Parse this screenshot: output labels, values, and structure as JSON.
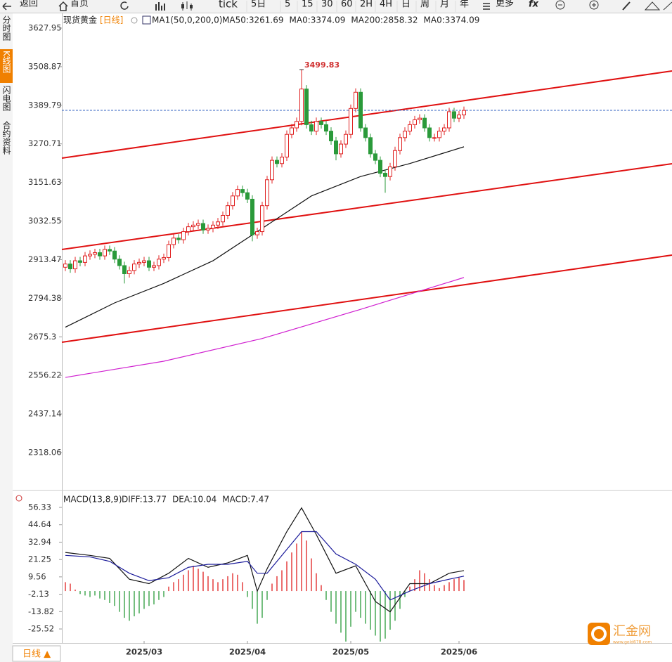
{
  "toolbar": {
    "back": "返回",
    "home": "首页",
    "tick": "tick",
    "periods": [
      "5日",
      "5",
      "15",
      "30",
      "60",
      "2H",
      "4H",
      "日",
      "周",
      "月",
      "年"
    ],
    "more": "更多",
    "fx": "fx"
  },
  "sidebar": [
    "分时图",
    "K线图",
    "闪电图",
    "合约资料"
  ],
  "bottom_tab": "日线 ▲",
  "watermark": {
    "name": "汇金网",
    "url": "www.gold678.com"
  },
  "chart_data": {
    "type": "candlestick",
    "title": "现货黄金",
    "period": "[日线]",
    "indicator": "MA1(50,0,200,0)",
    "header_labels": [
      {
        "text": "MA50:3261.69",
        "color": "#222"
      },
      {
        "text": "MA0:3374.09",
        "color": "#1a1a9a"
      },
      {
        "text": "MA200:2858.32",
        "color": "#d020d0"
      },
      {
        "text": "MA0:3374.09",
        "color": "#f08000"
      }
    ],
    "ylim": [
      2318.06,
      3627.95
    ],
    "yticks": [
      3627.95,
      3508.87,
      3389.79,
      3270.71,
      3151.63,
      3032.55,
      2913.47,
      2794.38,
      2675.3,
      2556.22,
      2437.14,
      2318.06
    ],
    "up_color": "#e02020",
    "down_color": "#2a9a3a",
    "last_price": 3374.09,
    "categories": [
      null,
      null,
      null,
      null,
      null,
      null,
      null,
      null,
      null,
      null,
      null,
      null,
      null,
      null,
      null,
      null,
      "2025/03",
      null,
      null,
      null,
      null,
      null,
      null,
      null,
      null,
      null,
      null,
      null,
      null,
      null,
      null,
      null,
      null,
      null,
      null,
      null,
      null,
      "2025/04",
      null,
      null,
      null,
      null,
      null,
      null,
      null,
      null,
      null,
      null,
      null,
      null,
      null,
      null,
      null,
      null,
      null,
      null,
      null,
      null,
      "2025/05",
      null,
      null,
      null,
      null,
      null,
      null,
      null,
      null,
      null,
      null,
      null,
      null,
      null,
      null,
      null,
      null,
      null,
      null,
      null,
      null,
      null,
      "2025/06",
      null
    ],
    "candles": [
      [
        2890,
        2912,
        2878,
        2900
      ],
      [
        2900,
        2912,
        2873,
        2885
      ],
      [
        2885,
        2922,
        2873,
        2910
      ],
      [
        2910,
        2922,
        2893,
        2905
      ],
      [
        2905,
        2937,
        2893,
        2925
      ],
      [
        2925,
        2942,
        2913,
        2930
      ],
      [
        2930,
        2947,
        2918,
        2935
      ],
      [
        2935,
        2947,
        2913,
        2925
      ],
      [
        2925,
        2957,
        2913,
        2945
      ],
      [
        2945,
        2957,
        2928,
        2940
      ],
      [
        2940,
        2952,
        2903,
        2915
      ],
      [
        2915,
        2927,
        2883,
        2895
      ],
      [
        2895,
        2907,
        2840,
        2870
      ],
      [
        2870,
        2892,
        2858,
        2880
      ],
      [
        2880,
        2912,
        2868,
        2900
      ],
      [
        2900,
        2917,
        2888,
        2905
      ],
      [
        2905,
        2922,
        2893,
        2910
      ],
      [
        2910,
        2922,
        2878,
        2890
      ],
      [
        2890,
        2907,
        2878,
        2895
      ],
      [
        2895,
        2927,
        2883,
        2915
      ],
      [
        2915,
        2932,
        2903,
        2920
      ],
      [
        2920,
        2972,
        2908,
        2960
      ],
      [
        2960,
        2992,
        2948,
        2980
      ],
      [
        2980,
        2992,
        2963,
        2975
      ],
      [
        2975,
        3012,
        2963,
        3000
      ],
      [
        3000,
        3027,
        2988,
        3015
      ],
      [
        3015,
        3032,
        3003,
        3020
      ],
      [
        3020,
        3037,
        3008,
        3025
      ],
      [
        3025,
        3037,
        2993,
        3005
      ],
      [
        3005,
        3022,
        2993,
        3010
      ],
      [
        3010,
        3032,
        2998,
        3020
      ],
      [
        3020,
        3042,
        3008,
        3030
      ],
      [
        3030,
        3062,
        3018,
        3050
      ],
      [
        3050,
        3092,
        3038,
        3080
      ],
      [
        3080,
        3122,
        3068,
        3110
      ],
      [
        3110,
        3142,
        3098,
        3130
      ],
      [
        3130,
        3142,
        3108,
        3120
      ],
      [
        3120,
        3132,
        3088,
        3100
      ],
      [
        3100,
        3112,
        2970,
        2990
      ],
      [
        2990,
        3012,
        2978,
        3000
      ],
      [
        3000,
        3092,
        2988,
        3080
      ],
      [
        3080,
        3172,
        3068,
        3160
      ],
      [
        3160,
        3232,
        3148,
        3220
      ],
      [
        3220,
        3232,
        3198,
        3210
      ],
      [
        3210,
        3242,
        3198,
        3230
      ],
      [
        3230,
        3312,
        3218,
        3300
      ],
      [
        3300,
        3332,
        3288,
        3320
      ],
      [
        3320,
        3352,
        3308,
        3340
      ],
      [
        3340,
        3499.83,
        3328,
        3440
      ],
      [
        3440,
        3452,
        3318,
        3330
      ],
      [
        3330,
        3342,
        3298,
        3310
      ],
      [
        3310,
        3352,
        3298,
        3340
      ],
      [
        3340,
        3352,
        3318,
        3330
      ],
      [
        3330,
        3342,
        3298,
        3310
      ],
      [
        3310,
        3322,
        3268,
        3280
      ],
      [
        3280,
        3292,
        3220,
        3240
      ],
      [
        3240,
        3282,
        3228,
        3270
      ],
      [
        3270,
        3312,
        3258,
        3300
      ],
      [
        3300,
        3392,
        3288,
        3380
      ],
      [
        3380,
        3442,
        3368,
        3430
      ],
      [
        3430,
        3442,
        3308,
        3320
      ],
      [
        3320,
        3332,
        3278,
        3290
      ],
      [
        3290,
        3302,
        3228,
        3240
      ],
      [
        3240,
        3252,
        3208,
        3220
      ],
      [
        3220,
        3232,
        3168,
        3180
      ],
      [
        3180,
        3192,
        3120,
        3170
      ],
      [
        3170,
        3212,
        3158,
        3200
      ],
      [
        3200,
        3262,
        3188,
        3250
      ],
      [
        3250,
        3302,
        3238,
        3290
      ],
      [
        3290,
        3322,
        3278,
        3310
      ],
      [
        3310,
        3342,
        3298,
        3330
      ],
      [
        3330,
        3357,
        3318,
        3345
      ],
      [
        3345,
        3362,
        3333,
        3350
      ],
      [
        3350,
        3362,
        3308,
        3320
      ],
      [
        3320,
        3332,
        3278,
        3290
      ],
      [
        3290,
        3302,
        3278,
        3290
      ],
      [
        3290,
        3322,
        3278,
        3310
      ],
      [
        3310,
        3332,
        3298,
        3320
      ],
      [
        3320,
        3382,
        3308,
        3370
      ],
      [
        3370,
        3382,
        3338,
        3350
      ],
      [
        3350,
        3372,
        3338,
        3360
      ],
      [
        3360,
        3386,
        3348,
        3374
      ]
    ],
    "ma_series": [
      {
        "name": "MA50",
        "color": "#111",
        "x": [
          0,
          10,
          20,
          30,
          40,
          50,
          60,
          70,
          81
        ],
        "values": [
          2705,
          2780,
          2840,
          2910,
          3010,
          3110,
          3170,
          3210,
          3261.69
        ]
      },
      {
        "name": "MA200",
        "color": "#d020d0",
        "x": [
          0,
          20,
          40,
          60,
          81
        ],
        "values": [
          2550,
          2600,
          2670,
          2760,
          2858.32
        ]
      }
    ],
    "macd": {
      "title": "MACD(13,8,9)",
      "labels": [
        {
          "text": "DIFF:13.77",
          "color": "#222"
        },
        {
          "text": "DEA:10.04",
          "color": "#1a1a9a"
        },
        {
          "text": "MACD:7.47",
          "color": "#d020d0"
        }
      ],
      "ylim": [
        -25.52,
        56.33
      ],
      "yticks": [
        56.33,
        44.64,
        32.94,
        21.25,
        9.56,
        -2.13,
        -13.82,
        -25.52
      ],
      "histogram": [
        6,
        5,
        1,
        -2,
        -3,
        -4,
        -3,
        -5,
        -6,
        -8,
        -10,
        -14,
        -18,
        -20,
        -17,
        -15,
        -12,
        -10,
        -9,
        -6,
        -4,
        3,
        6,
        8,
        11,
        14,
        17,
        15,
        13,
        10,
        8,
        6,
        8,
        10,
        12,
        11,
        6,
        -4,
        -12,
        -22,
        -18,
        -6,
        5,
        10,
        14,
        20,
        26,
        32,
        40,
        34,
        22,
        12,
        4,
        -6,
        -14,
        -22,
        -28,
        -34,
        -24,
        -14,
        -18,
        -22,
        -26,
        -30,
        -34,
        -32,
        -26,
        -20,
        -12,
        -4,
        3,
        8,
        14,
        12,
        8,
        4,
        2,
        4,
        6,
        8,
        9,
        7.47
      ],
      "series": [
        {
          "name": "DIFF",
          "color": "#111",
          "x": [
            0,
            5,
            9,
            13,
            17,
            21,
            25,
            29,
            33,
            37,
            39,
            41,
            45,
            48,
            51,
            55,
            59,
            63,
            66,
            70,
            74,
            78,
            81
          ],
          "values": [
            26,
            24,
            22,
            8,
            5,
            12,
            22,
            16,
            19,
            24,
            0,
            15,
            40,
            56,
            38,
            12,
            17,
            -7,
            -14,
            5,
            5,
            12,
            13.77
          ]
        },
        {
          "name": "DEA",
          "color": "#1a1a9a",
          "x": [
            0,
            5,
            9,
            13,
            17,
            21,
            25,
            29,
            33,
            37,
            39,
            41,
            45,
            48,
            51,
            55,
            59,
            63,
            66,
            70,
            74,
            78,
            81
          ],
          "values": [
            24,
            23,
            20,
            12,
            7,
            9,
            16,
            18,
            18,
            20,
            12,
            12,
            28,
            40,
            40,
            25,
            18,
            8,
            -6,
            0,
            5,
            8,
            10.04
          ]
        }
      ]
    }
  }
}
